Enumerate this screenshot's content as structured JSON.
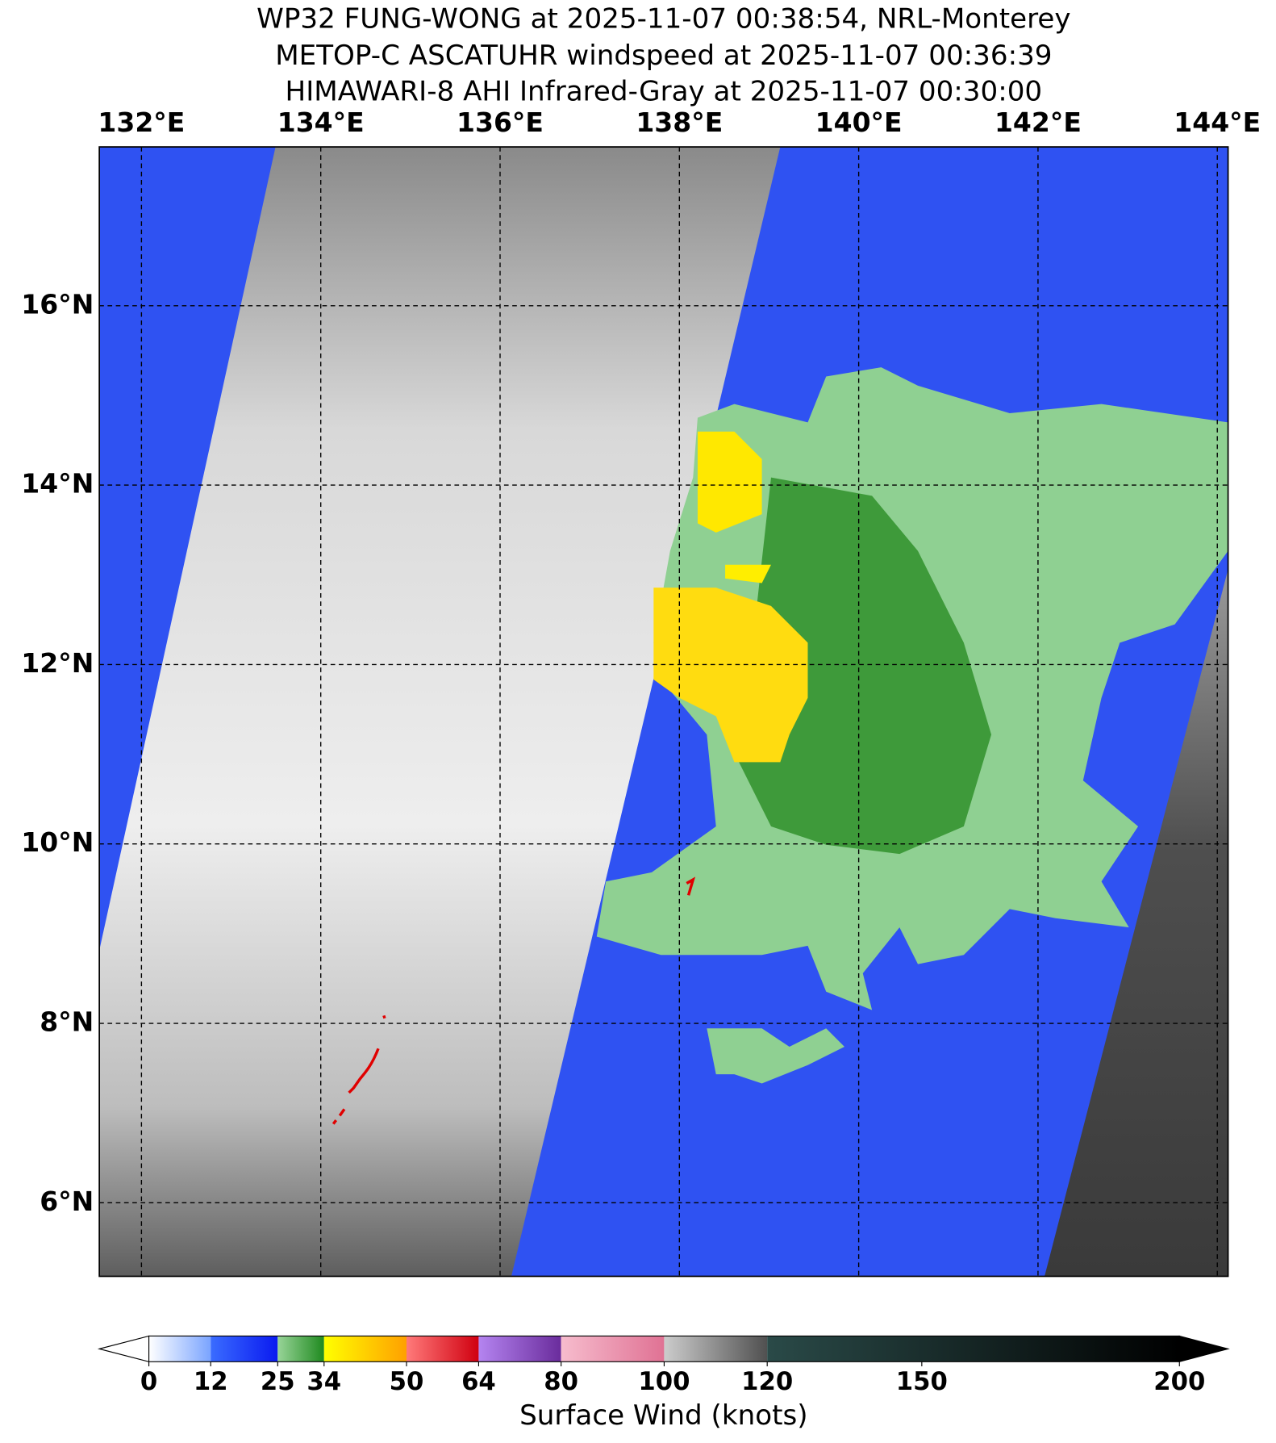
{
  "titles": [
    "WP32 FUNG-WONG at 2025-11-07 00:38:54, NRL-Monterey",
    "METOP-C ASCATUHR windspeed at 2025-11-07 00:36:39",
    "HIMAWARI-8 AHI Infrared-Gray at 2025-11-07 00:30:00"
  ],
  "map": {
    "xlim": [
      131.53,
      144.12
    ],
    "ylim": [
      5.18,
      17.77
    ],
    "grid": true,
    "xticks": [
      {
        "value": 132,
        "label": "132°E"
      },
      {
        "value": 134,
        "label": "134°E"
      },
      {
        "value": 136,
        "label": "136°E"
      },
      {
        "value": 138,
        "label": "138°E"
      },
      {
        "value": 140,
        "label": "140°E"
      },
      {
        "value": 142,
        "label": "142°E"
      },
      {
        "value": 144,
        "label": "144°E"
      }
    ],
    "yticks": [
      {
        "value": 6,
        "label": "6°N"
      },
      {
        "value": 8,
        "label": "8°N"
      },
      {
        "value": 10,
        "label": "10°N"
      },
      {
        "value": 12,
        "label": "12°N"
      },
      {
        "value": 14,
        "label": "14°N"
      },
      {
        "value": 16,
        "label": "16°N"
      }
    ]
  },
  "colorbar": {
    "label": "Surface Wind (knots)",
    "lim": [
      0,
      200
    ],
    "ticks": [
      0,
      12,
      25,
      34,
      50,
      64,
      80,
      100,
      120,
      150,
      200
    ],
    "under_color": "#ffffff",
    "over_color": "#000000",
    "segments": [
      {
        "from": 0,
        "to": 12,
        "colors": [
          "#ffffff",
          "#7aa4ff"
        ]
      },
      {
        "from": 12,
        "to": 25,
        "colors": [
          "#3a6cff",
          "#0a1af0"
        ]
      },
      {
        "from": 25,
        "to": 34,
        "colors": [
          "#98d498",
          "#1f8a1f"
        ]
      },
      {
        "from": 34,
        "to": 50,
        "colors": [
          "#ffff00",
          "#ffa000"
        ]
      },
      {
        "from": 50,
        "to": 64,
        "colors": [
          "#ff7a7a",
          "#d00010"
        ]
      },
      {
        "from": 64,
        "to": 80,
        "colors": [
          "#b484f0",
          "#6a2c9c"
        ]
      },
      {
        "from": 80,
        "to": 100,
        "colors": [
          "#f6bccd",
          "#e07294"
        ]
      },
      {
        "from": 100,
        "to": 120,
        "colors": [
          "#cccccc",
          "#505050"
        ]
      },
      {
        "from": 120,
        "to": 200,
        "colors": [
          "#2a4a48",
          "#000000"
        ]
      }
    ]
  }
}
